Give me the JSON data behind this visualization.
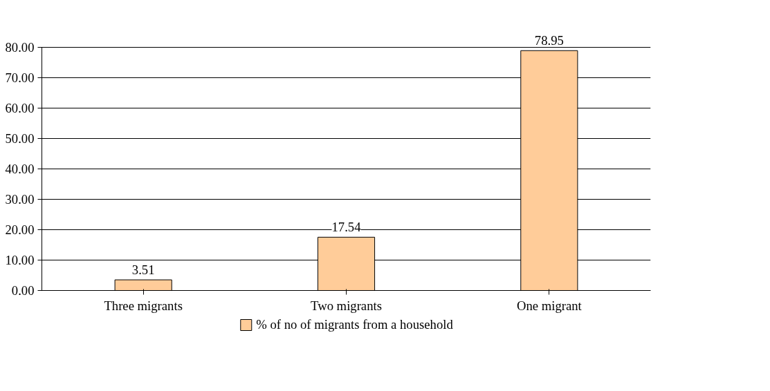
{
  "chart_data": {
    "type": "bar",
    "categories": [
      "Three migrants",
      "Two migrants",
      "One migrant"
    ],
    "series": [
      {
        "name": "% of no of migrants from a household",
        "color": "#ffcc99",
        "values": [
          3.51,
          17.54,
          78.95
        ]
      }
    ],
    "ylim": [
      0,
      80
    ],
    "yticks": [
      {
        "value": 0,
        "label": "0.00"
      },
      {
        "value": 10,
        "label": "10.00"
      },
      {
        "value": 20,
        "label": "20.00"
      },
      {
        "value": 30,
        "label": "30.00"
      },
      {
        "value": 40,
        "label": "40.00"
      },
      {
        "value": 50,
        "label": "50.00"
      },
      {
        "value": 60,
        "label": "60.00"
      },
      {
        "value": 70,
        "label": "70.00"
      },
      {
        "value": 80,
        "label": "80.00"
      }
    ],
    "grid": "y",
    "legend": "bottom",
    "data_labels": true
  }
}
